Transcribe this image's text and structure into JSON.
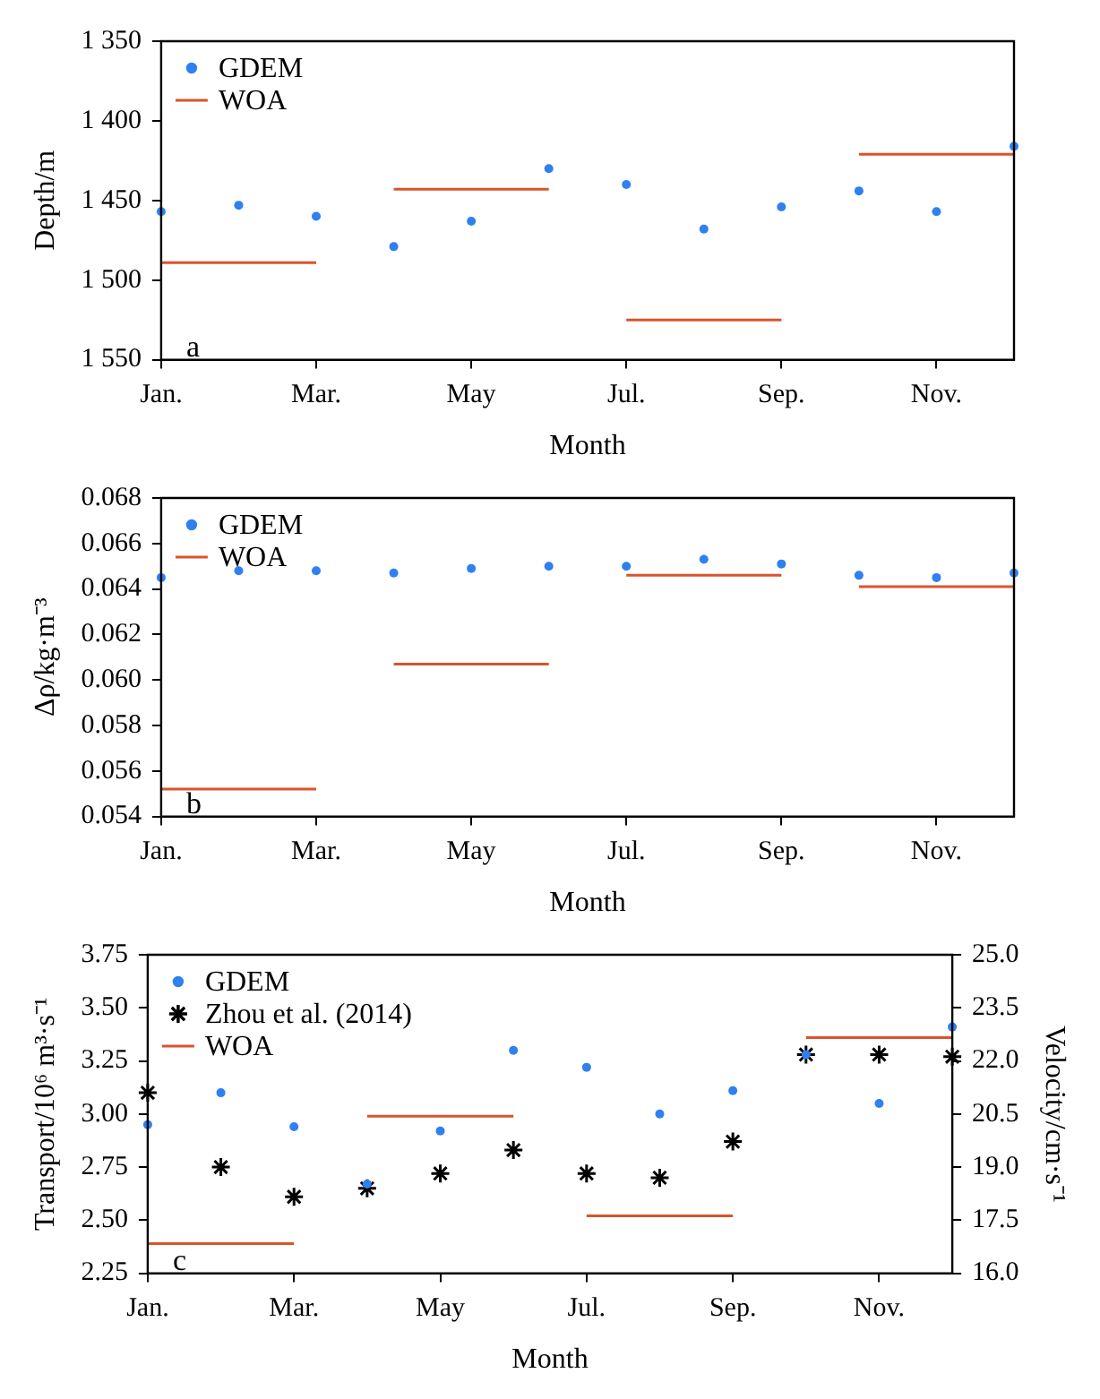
{
  "chart_data": [
    {
      "type": "scatter",
      "xlabel": "Month",
      "ylabel": "Depth/m",
      "annotations": [
        "a"
      ],
      "legend": "top left",
      "categories": [
        "Jan.",
        null,
        "Mar.",
        null,
        "May",
        null,
        "Jul.",
        null,
        "Sep.",
        null,
        "Nov.",
        null
      ],
      "ylim": [
        1550,
        1350
      ],
      "yticks": [
        {
          "value": 1350,
          "label": "1 350"
        },
        {
          "value": 1400,
          "label": "1 400"
        },
        {
          "value": 1450,
          "label": "1 450"
        },
        {
          "value": 1500,
          "label": "1 500"
        },
        {
          "value": 1550,
          "label": "1 550"
        }
      ],
      "series": [
        {
          "name": "GDEM",
          "color": "#2f80f0",
          "marker": "circle",
          "values": [
            1457,
            1453,
            1460,
            1479,
            1463,
            1430,
            1440,
            1468,
            1454,
            1444,
            1457,
            1416
          ]
        },
        {
          "name": "WOA",
          "type": "line",
          "color": "#d9542b",
          "marker": "none",
          "values": [
            1489,
            1489,
            1489,
            1443,
            1443,
            1443,
            1525,
            1525,
            1525,
            1421,
            1421,
            1421
          ]
        }
      ]
    },
    {
      "type": "scatter",
      "xlabel": "Month",
      "ylabel": "Δρ/kg·m⁻³",
      "annotations": [
        "b"
      ],
      "legend": "top left",
      "categories": [
        "Jan.",
        null,
        "Mar.",
        null,
        "May",
        null,
        "Jul.",
        null,
        "Sep.",
        null,
        "Nov.",
        null
      ],
      "ylim": [
        0.054,
        0.068
      ],
      "yticks": [
        0.054,
        0.056,
        0.058,
        {
          "value": 0.06,
          "label": "0.060"
        },
        0.062,
        0.064,
        0.066,
        0.068
      ],
      "series": [
        {
          "name": "GDEM",
          "color": "#2f80f0",
          "marker": "circle",
          "values": [
            0.0645,
            0.0648,
            0.0648,
            0.0647,
            0.0649,
            0.065,
            0.065,
            0.0653,
            0.0651,
            0.0646,
            0.0645,
            0.0647
          ]
        },
        {
          "name": "WOA",
          "type": "line",
          "color": "#d9542b",
          "marker": "none",
          "values": [
            0.0552,
            0.0552,
            0.0552,
            0.0607,
            0.0607,
            0.0607,
            0.0646,
            0.0646,
            0.0646,
            0.0641,
            0.0641,
            0.0641
          ]
        }
      ]
    },
    {
      "type": "scatter",
      "xlabel": "Month",
      "ylabel": "Transport/10⁶ m³·s⁻¹",
      "y2label": "Velocity/cm·s⁻¹",
      "annotations": [
        "c"
      ],
      "legend": "top left",
      "categories": [
        "Jan.",
        null,
        "Mar.",
        null,
        "May",
        null,
        "Jul.",
        null,
        "Sep.",
        null,
        "Nov.",
        null
      ],
      "ylim": [
        2.25,
        3.75
      ],
      "yticks": [
        2.25,
        {
          "value": 2.5,
          "label": "2.50"
        },
        2.75,
        {
          "value": 3,
          "label": "3.00"
        },
        3.25,
        {
          "value": 3.5,
          "label": "3.50"
        },
        3.75
      ],
      "y2lim": [
        16,
        25
      ],
      "y2ticks": [
        {
          "value": 16,
          "label": "16.0"
        },
        {
          "value": 17.5,
          "label": "17.5"
        },
        {
          "value": 19,
          "label": "19.0"
        },
        {
          "value": 20.5,
          "label": "20.5"
        },
        {
          "value": 22,
          "label": "22.0"
        },
        {
          "value": 23.5,
          "label": "23.5"
        },
        {
          "value": 25,
          "label": "25.0"
        }
      ],
      "series": [
        {
          "name": "GDEM",
          "color": "#2f80f0",
          "marker": "circle",
          "values": [
            2.95,
            3.1,
            2.94,
            2.67,
            2.92,
            3.3,
            3.22,
            3.0,
            3.11,
            3.28,
            3.05,
            3.41
          ]
        },
        {
          "name": "Zhou et al. (2014)",
          "color": "#000000",
          "marker": "cross",
          "values": [
            3.1,
            2.75,
            2.61,
            2.65,
            2.72,
            2.83,
            2.72,
            2.7,
            2.87,
            3.28,
            3.28,
            3.27
          ]
        },
        {
          "name": "WOA",
          "type": "line",
          "color": "#d9542b",
          "marker": "none",
          "values": [
            2.39,
            2.39,
            2.39,
            2.99,
            2.99,
            2.99,
            2.52,
            2.52,
            2.52,
            3.36,
            3.36,
            3.36
          ]
        }
      ]
    }
  ]
}
